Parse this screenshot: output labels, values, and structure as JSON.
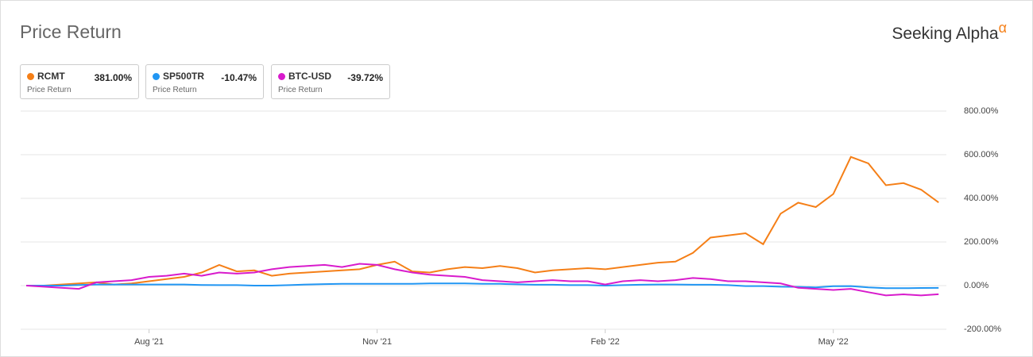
{
  "brand": "Seeking Alpha",
  "brand_mark": "α",
  "chart_data": {
    "type": "line",
    "title": "Price Return",
    "categories": [
      null,
      null,
      null,
      null,
      null,
      null,
      null,
      "Aug '21",
      null,
      null,
      null,
      null,
      null,
      null,
      null,
      null,
      null,
      null,
      null,
      null,
      "Nov '21",
      null,
      null,
      null,
      null,
      null,
      null,
      null,
      null,
      null,
      null,
      null,
      null,
      "Feb '22",
      null,
      null,
      null,
      null,
      null,
      null,
      null,
      null,
      null,
      null,
      null,
      null,
      "May '22",
      null,
      null,
      null,
      null,
      null,
      null
    ],
    "series": [
      {
        "name": "RCMT",
        "color": "#f57f17",
        "legend_value": "381.00%",
        "legend_subtitle": "Price Return",
        "values": [
          0,
          0,
          5,
          10,
          15,
          5,
          10,
          20,
          30,
          40,
          60,
          95,
          65,
          70,
          45,
          55,
          60,
          65,
          70,
          75,
          95,
          110,
          65,
          60,
          75,
          85,
          80,
          90,
          80,
          60,
          70,
          75,
          80,
          75,
          85,
          95,
          105,
          110,
          150,
          220,
          230,
          240,
          190,
          330,
          380,
          360,
          420,
          590,
          560,
          460,
          470,
          440,
          381
        ]
      },
      {
        "name": "SP500TR",
        "color": "#2196f3",
        "legend_value": "-10.47%",
        "legend_subtitle": "Price Return",
        "values": [
          0,
          0,
          0,
          3,
          5,
          5,
          5,
          5,
          5,
          5,
          3,
          2,
          2,
          0,
          0,
          2,
          5,
          7,
          8,
          8,
          8,
          8,
          8,
          10,
          10,
          10,
          8,
          8,
          6,
          4,
          4,
          2,
          2,
          0,
          2,
          4,
          5,
          5,
          4,
          4,
          2,
          -2,
          -2,
          -5,
          -6,
          -8,
          -3,
          -2,
          -8,
          -12,
          -12,
          -11,
          -10.47
        ]
      },
      {
        "name": "BTC-USD",
        "color": "#d81bcc",
        "legend_value": "-39.72%",
        "legend_subtitle": "Price Return",
        "values": [
          0,
          -5,
          -10,
          -15,
          15,
          20,
          25,
          40,
          45,
          55,
          45,
          60,
          55,
          60,
          75,
          85,
          90,
          95,
          85,
          100,
          95,
          75,
          60,
          50,
          45,
          40,
          25,
          20,
          15,
          20,
          25,
          20,
          20,
          5,
          20,
          25,
          20,
          25,
          35,
          30,
          20,
          20,
          15,
          10,
          -10,
          -15,
          -20,
          -15,
          -30,
          -45,
          -40,
          -45,
          -39.72
        ]
      }
    ],
    "ylim": [
      -200,
      800
    ],
    "yticks": [
      {
        "value": -200,
        "label": "-200.00%"
      },
      {
        "value": 0,
        "label": "0.00%"
      },
      {
        "value": 200,
        "label": "200.00%"
      },
      {
        "value": 400,
        "label": "400.00%"
      },
      {
        "value": 600,
        "label": "600.00%"
      },
      {
        "value": 800,
        "label": "800.00%"
      }
    ],
    "grid": true
  }
}
